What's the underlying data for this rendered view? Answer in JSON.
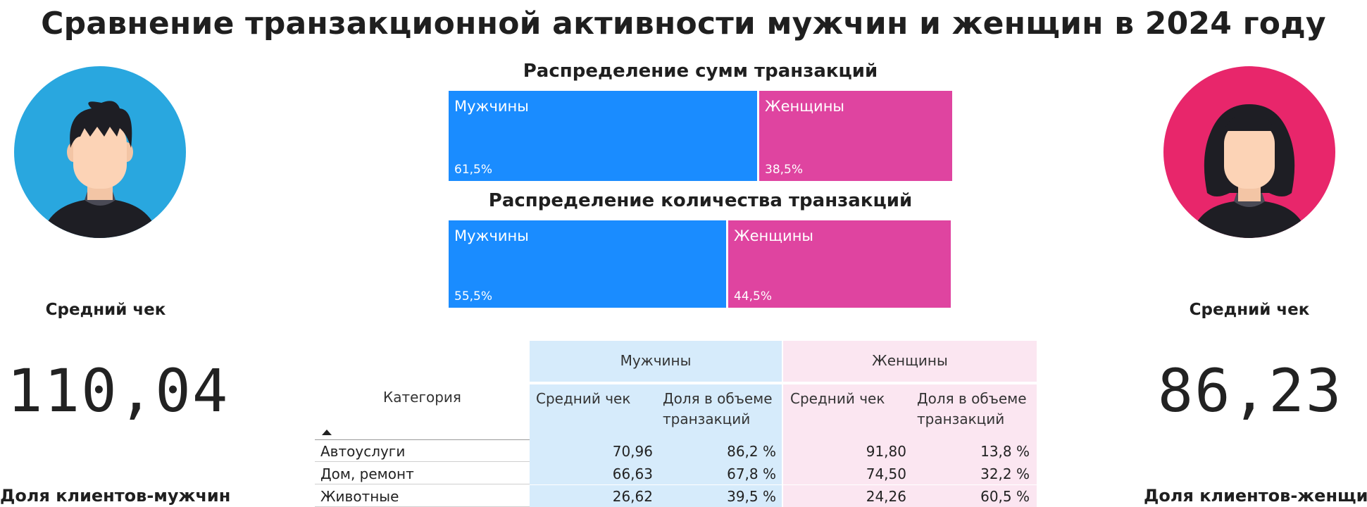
{
  "title": "Сравнение транзакционной активности мужчин и женщин в 2024 году",
  "left_panel": {
    "kpi_label": "Средний чек",
    "kpi_value": "110,04",
    "bottom_label": "Доля клиентов-мужчин",
    "avatar_bg": "#29a7df"
  },
  "right_panel": {
    "kpi_label": "Средний чек",
    "kpi_value": "86,23",
    "bottom_label": "Доля клиентов-женщин",
    "avatar_bg": "#e8266b"
  },
  "chart_data": [
    {
      "type": "bar",
      "stacked": "100%",
      "title": "Распределение сумм транзакций",
      "series": [
        {
          "name": "Мужчины",
          "value": 61.5,
          "label": "61,5%",
          "color": "#1a8cff"
        },
        {
          "name": "Женщины",
          "value": 38.5,
          "label": "38,5%",
          "color": "#df44a0"
        }
      ]
    },
    {
      "type": "bar",
      "stacked": "100%",
      "title": "Распределение количества транзакций",
      "series": [
        {
          "name": "Мужчины",
          "value": 55.5,
          "label": "55,5%",
          "color": "#1a8cff"
        },
        {
          "name": "Женщины",
          "value": 44.5,
          "label": "44,5%",
          "color": "#df44a0"
        }
      ]
    },
    {
      "type": "table",
      "group_headers": [
        "Мужчины",
        "Женщины"
      ],
      "category_header": "Категория",
      "column_headers": [
        "Средний чек",
        "Доля в объеме транзакций",
        "Средний чек",
        "Доля в объеме транзакций"
      ],
      "column_header_lines": [
        [
          "Средний чек"
        ],
        [
          "Доля в объеме",
          "транзакций"
        ],
        [
          "Средний чек"
        ],
        [
          "Доля в объеме",
          "транзакций"
        ]
      ],
      "rows": [
        {
          "category": "Автоуслуги",
          "values": [
            "70,96",
            "86,2 %",
            "91,80",
            "13,8 %"
          ]
        },
        {
          "category": "Дом, ремонт",
          "values": [
            "66,63",
            "67,8 %",
            "74,50",
            "32,2 %"
          ]
        },
        {
          "category": "Животные",
          "values": [
            "26,62",
            "39,5 %",
            "24,26",
            "60,5 %"
          ]
        }
      ]
    }
  ]
}
